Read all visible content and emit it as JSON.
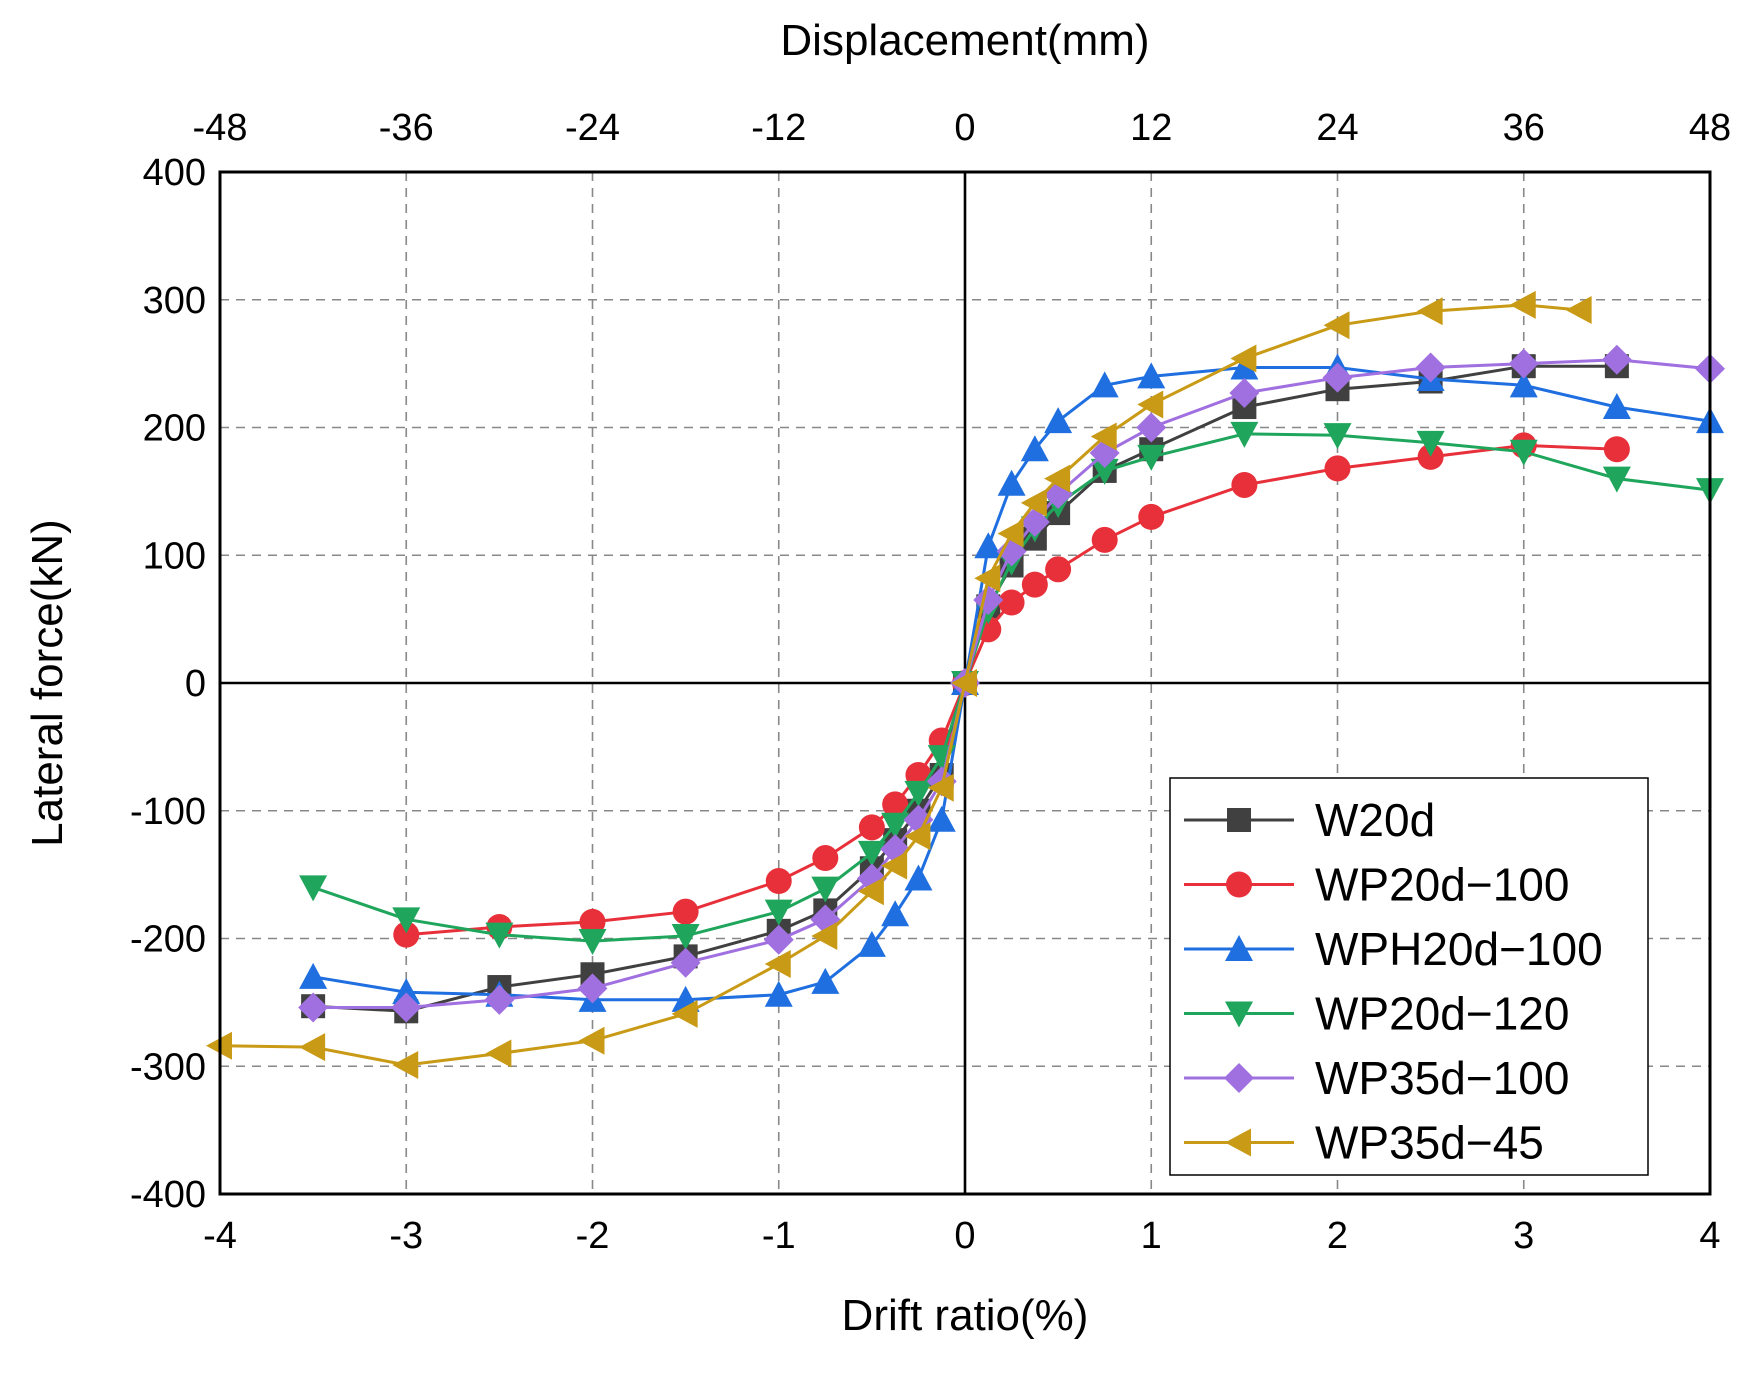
{
  "chart_data": {
    "type": "line",
    "xlabel": "Drift ratio(%)",
    "x2label": "Displacement(mm)",
    "ylabel": "Lateral force(kN)",
    "xlim": [
      -4,
      4
    ],
    "x2lim": [
      -48,
      48
    ],
    "ylim": [
      -400,
      400
    ],
    "xticks": [
      -4,
      -3,
      -2,
      -1,
      0,
      1,
      2,
      3,
      4
    ],
    "x2ticks": [
      -48,
      -36,
      -24,
      -12,
      0,
      12,
      24,
      36,
      48
    ],
    "yticks": [
      400,
      300,
      200,
      100,
      0,
      -100,
      -200,
      -300,
      -400
    ],
    "grid": true,
    "legend_position": "bottom-right",
    "series": [
      {
        "name": "W20d",
        "color": "#404040",
        "marker": "square",
        "x": [
          -3.5,
          -3.0,
          -2.5,
          -2.0,
          -1.5,
          -1.0,
          -0.75,
          -0.5,
          -0.375,
          -0.25,
          -0.125,
          0,
          0.125,
          0.25,
          0.375,
          0.5,
          0.75,
          1.0,
          1.5,
          2.0,
          2.5,
          3.0,
          3.5
        ],
        "y": [
          -253,
          -257,
          -238,
          -228,
          -214,
          -194,
          -178,
          -145,
          -123,
          -100,
          -72,
          0,
          60,
          92,
          113,
          133,
          166,
          183,
          216,
          230,
          236,
          248,
          248
        ]
      },
      {
        "name": "WP20d−100",
        "color": "#e8303a",
        "marker": "circle",
        "x": [
          -3.0,
          -2.5,
          -2.0,
          -1.5,
          -1.0,
          -0.75,
          -0.5,
          -0.375,
          -0.25,
          -0.125,
          0,
          0.125,
          0.25,
          0.375,
          0.5,
          0.75,
          1.0,
          1.5,
          2.0,
          2.5,
          3.0,
          3.5
        ],
        "y": [
          -197,
          -191,
          -187,
          -179,
          -155,
          -137,
          -113,
          -95,
          -72,
          -45,
          0,
          42,
          63,
          77,
          89,
          112,
          130,
          155,
          168,
          177,
          186,
          183
        ]
      },
      {
        "name": "WPH20d−100",
        "color": "#1f6fe0",
        "marker": "triangle-up",
        "x": [
          -3.5,
          -3.0,
          -2.5,
          -2.0,
          -1.5,
          -1.0,
          -0.75,
          -0.5,
          -0.375,
          -0.25,
          -0.125,
          0,
          0.125,
          0.25,
          0.375,
          0.5,
          0.75,
          1.0,
          1.5,
          2.0,
          2.5,
          3.0,
          3.5,
          4.0
        ],
        "y": [
          -230,
          -242,
          -244,
          -248,
          -248,
          -244,
          -234,
          -205,
          -181,
          -153,
          -107,
          0,
          107,
          156,
          183,
          205,
          233,
          240,
          247,
          247,
          238,
          233,
          216,
          205
        ]
      },
      {
        "name": "WP20d−120",
        "color": "#1fa65c",
        "marker": "triangle-down",
        "x": [
          -3.5,
          -3.0,
          -2.5,
          -2.0,
          -1.5,
          -1.0,
          -0.75,
          -0.5,
          -0.375,
          -0.25,
          -0.125,
          0,
          0.125,
          0.25,
          0.375,
          0.5,
          0.75,
          1.0,
          1.5,
          2.0,
          2.5,
          3.0,
          3.5,
          4.0
        ],
        "y": [
          -160,
          -185,
          -197,
          -202,
          -198,
          -179,
          -161,
          -133,
          -111,
          -86,
          -58,
          0,
          57,
          95,
          121,
          140,
          166,
          177,
          195,
          194,
          188,
          181,
          160,
          151
        ]
      },
      {
        "name": "WP35d−100",
        "color": "#a070e0",
        "marker": "diamond",
        "x": [
          -3.5,
          -3.0,
          -2.5,
          -2.0,
          -1.5,
          -1.0,
          -0.75,
          -0.5,
          -0.375,
          -0.25,
          -0.125,
          0,
          0.125,
          0.25,
          0.375,
          0.5,
          0.75,
          1.0,
          1.5,
          2.0,
          2.5,
          3.0,
          3.5,
          4.0
        ],
        "y": [
          -254,
          -254,
          -248,
          -239,
          -219,
          -201,
          -185,
          -153,
          -130,
          -107,
          -77,
          0,
          65,
          103,
          126,
          148,
          180,
          200,
          227,
          239,
          247,
          250,
          253,
          246
        ]
      },
      {
        "name": "WP35d−45",
        "color": "#c99a15",
        "marker": "triangle-left",
        "x": [
          -4.0,
          -3.5,
          -3.0,
          -2.5,
          -2.0,
          -1.5,
          -1.0,
          -0.75,
          -0.5,
          -0.375,
          -0.25,
          -0.125,
          0,
          0.125,
          0.25,
          0.375,
          0.5,
          0.75,
          1.0,
          1.5,
          2.0,
          2.5,
          3.0,
          3.3
        ],
        "y": [
          -284,
          -285,
          -299,
          -290,
          -280,
          -259,
          -220,
          -198,
          -163,
          -143,
          -120,
          -82,
          0,
          82,
          117,
          141,
          160,
          193,
          218,
          254,
          280,
          291,
          296,
          292
        ]
      }
    ]
  }
}
